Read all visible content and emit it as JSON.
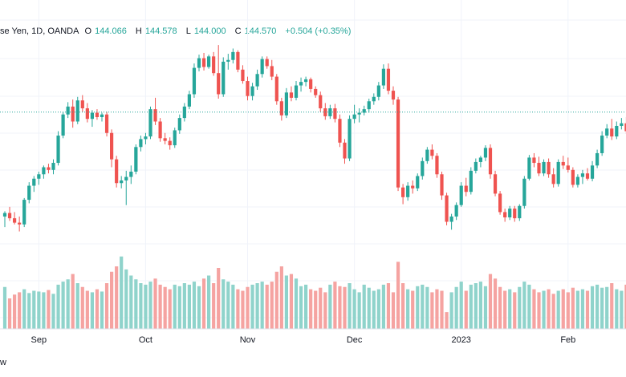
{
  "legend": {
    "symbol": "se Yen, 1D, OANDA",
    "open_label": "O",
    "open": "144.066",
    "high_label": "H",
    "high": "144.578",
    "low_label": "L",
    "low": "144.000",
    "close_label": "C",
    "close": "144.570",
    "change": "+0.504 (+0.35%)"
  },
  "footer_text": "w",
  "colors": {
    "up": "#26a69a",
    "down": "#ef5350",
    "vol_up": "#8fd3cb",
    "vol_down": "#f5a3a1",
    "grid": "#f0f3fa",
    "price_line": "#26a69a"
  },
  "chart_data": {
    "type": "candlestick",
    "x_ticks": [
      {
        "label": "Sep",
        "index": 7
      },
      {
        "label": "Oct",
        "index": 29
      },
      {
        "label": "Nov",
        "index": 50
      },
      {
        "label": "Dec",
        "index": 72
      },
      {
        "label": "2023",
        "index": 94
      },
      {
        "label": "Feb",
        "index": 116
      }
    ],
    "current_price": 144.57,
    "y_range": [
      129.5,
      152.3
    ],
    "volume_range": [
      0,
      100
    ],
    "candles": [
      [
        132.7,
        133.3,
        131.5,
        133.1
      ],
      [
        133.1,
        133.8,
        132.2,
        132.5
      ],
      [
        132.5,
        133.2,
        131.8,
        132.0
      ],
      [
        132.0,
        132.7,
        131.0,
        131.8
      ],
      [
        131.8,
        134.8,
        131.5,
        134.6
      ],
      [
        134.6,
        136.6,
        134.2,
        136.2
      ],
      [
        136.2,
        137.3,
        135.5,
        137.0
      ],
      [
        137.0,
        137.8,
        136.3,
        137.5
      ],
      [
        137.5,
        138.5,
        137.0,
        138.3
      ],
      [
        138.3,
        138.7,
        137.6,
        138.0
      ],
      [
        138.0,
        139.2,
        137.5,
        138.8
      ],
      [
        138.8,
        142.4,
        138.5,
        141.9
      ],
      [
        141.9,
        144.6,
        141.6,
        144.3
      ],
      [
        144.3,
        145.7,
        143.9,
        145.2
      ],
      [
        145.2,
        146.0,
        142.8,
        143.5
      ],
      [
        143.5,
        146.3,
        143.2,
        145.9
      ],
      [
        145.9,
        146.5,
        144.6,
        145.0
      ],
      [
        145.0,
        145.6,
        143.4,
        143.8
      ],
      [
        143.8,
        144.8,
        142.9,
        144.5
      ],
      [
        144.5,
        144.9,
        143.7,
        144.0
      ],
      [
        144.0,
        144.5,
        143.5,
        144.3
      ],
      [
        144.3,
        144.6,
        141.8,
        142.2
      ],
      [
        142.2,
        142.6,
        138.3,
        139.2
      ],
      [
        139.2,
        139.6,
        136.0,
        136.5
      ],
      [
        136.5,
        137.3,
        135.9,
        136.8
      ],
      [
        136.8,
        137.9,
        134.0,
        137.2
      ],
      [
        137.2,
        138.5,
        136.4,
        137.8
      ],
      [
        137.8,
        140.9,
        137.5,
        140.6
      ],
      [
        140.6,
        141.9,
        140.1,
        141.5
      ],
      [
        141.5,
        142.2,
        140.9,
        141.8
      ],
      [
        141.8,
        145.2,
        141.5,
        144.9
      ],
      [
        144.9,
        146.2,
        143.1,
        143.5
      ],
      [
        143.5,
        143.9,
        141.2,
        141.6
      ],
      [
        141.6,
        142.2,
        140.9,
        141.3
      ],
      [
        141.3,
        141.7,
        140.3,
        140.8
      ],
      [
        140.8,
        142.8,
        140.5,
        142.5
      ],
      [
        142.5,
        144.3,
        142.1,
        143.9
      ],
      [
        143.9,
        145.6,
        143.5,
        145.2
      ],
      [
        145.2,
        147.0,
        144.9,
        146.6
      ],
      [
        146.6,
        150.1,
        146.2,
        149.6
      ],
      [
        149.6,
        151.1,
        149.2,
        150.7
      ],
      [
        150.7,
        151.3,
        149.3,
        149.7
      ],
      [
        149.7,
        151.1,
        149.5,
        150.9
      ],
      [
        150.9,
        151.4,
        148.7,
        149.0
      ],
      [
        149.0,
        152.2,
        146.1,
        146.6
      ],
      [
        146.6,
        150.8,
        146.3,
        150.3
      ],
      [
        150.3,
        151.2,
        149.4,
        150.5
      ],
      [
        150.5,
        151.8,
        150.1,
        151.4
      ],
      [
        151.4,
        151.6,
        149.1,
        149.4
      ],
      [
        149.4,
        149.9,
        147.8,
        148.1
      ],
      [
        148.1,
        148.6,
        145.9,
        146.4
      ],
      [
        146.4,
        147.9,
        145.9,
        147.5
      ],
      [
        147.5,
        149.4,
        147.1,
        148.9
      ],
      [
        148.9,
        150.9,
        148.5,
        150.6
      ],
      [
        150.6,
        150.9,
        149.5,
        149.8
      ],
      [
        149.8,
        150.5,
        148.2,
        148.6
      ],
      [
        148.6,
        148.9,
        145.4,
        145.8
      ],
      [
        145.8,
        146.2,
        143.6,
        144.2
      ],
      [
        144.2,
        147.3,
        143.9,
        146.8
      ],
      [
        146.8,
        147.5,
        145.8,
        146.2
      ],
      [
        146.2,
        148.1,
        145.9,
        147.6
      ],
      [
        147.6,
        148.5,
        146.9,
        148.0
      ],
      [
        148.0,
        148.6,
        147.5,
        148.3
      ],
      [
        148.3,
        148.5,
        146.8,
        147.2
      ],
      [
        147.2,
        147.5,
        146.2,
        146.5
      ],
      [
        146.5,
        146.9,
        144.6,
        145.0
      ],
      [
        145.0,
        145.6,
        143.7,
        144.1
      ],
      [
        144.1,
        145.4,
        143.8,
        145.0
      ],
      [
        145.0,
        145.5,
        143.4,
        143.8
      ],
      [
        143.8,
        144.3,
        140.6,
        141.1
      ],
      [
        141.1,
        141.5,
        138.7,
        139.3
      ],
      [
        139.3,
        144.2,
        139.0,
        143.8
      ],
      [
        143.8,
        145.4,
        143.3,
        144.3
      ],
      [
        144.3,
        145.0,
        143.4,
        144.5
      ],
      [
        144.5,
        145.3,
        144.2,
        144.9
      ],
      [
        144.9,
        146.1,
        144.5,
        145.8
      ],
      [
        145.8,
        146.7,
        145.4,
        146.3
      ],
      [
        146.3,
        148.0,
        145.9,
        147.6
      ],
      [
        147.6,
        150.0,
        147.2,
        149.5
      ],
      [
        149.5,
        150.1,
        146.6,
        147.0
      ],
      [
        147.0,
        147.5,
        145.4,
        146.0
      ],
      [
        146.0,
        146.3,
        135.6,
        136.0
      ],
      [
        136.0,
        136.4,
        134.1,
        134.9
      ],
      [
        134.9,
        136.6,
        134.5,
        136.2
      ],
      [
        136.2,
        136.8,
        135.3,
        135.9
      ],
      [
        135.9,
        137.6,
        135.6,
        137.3
      ],
      [
        137.3,
        139.4,
        136.9,
        139.0
      ],
      [
        139.0,
        140.6,
        138.7,
        140.3
      ],
      [
        140.3,
        140.9,
        139.2,
        139.6
      ],
      [
        139.6,
        139.9,
        137.1,
        137.5
      ],
      [
        137.5,
        137.8,
        134.6,
        135.1
      ],
      [
        135.1,
        135.4,
        131.7,
        132.1
      ],
      [
        132.1,
        133.0,
        131.2,
        132.7
      ],
      [
        132.7,
        134.3,
        132.3,
        134.0
      ],
      [
        134.0,
        136.6,
        133.8,
        136.2
      ],
      [
        136.2,
        137.1,
        135.0,
        135.5
      ],
      [
        135.5,
        138.3,
        135.2,
        137.9
      ],
      [
        137.9,
        139.3,
        137.6,
        138.9
      ],
      [
        138.9,
        139.6,
        138.3,
        139.4
      ],
      [
        139.4,
        140.8,
        139.0,
        140.5
      ],
      [
        140.5,
        140.9,
        137.0,
        137.5
      ],
      [
        137.5,
        137.9,
        135.0,
        135.3
      ],
      [
        135.3,
        135.6,
        132.9,
        133.2
      ],
      [
        133.2,
        133.6,
        132.1,
        132.6
      ],
      [
        132.6,
        133.9,
        132.3,
        133.6
      ],
      [
        133.6,
        133.9,
        132.1,
        132.5
      ],
      [
        132.5,
        134.1,
        132.2,
        133.9
      ],
      [
        133.9,
        137.3,
        133.6,
        137.0
      ],
      [
        137.0,
        139.7,
        136.8,
        139.4
      ],
      [
        139.4,
        139.9,
        138.3,
        138.8
      ],
      [
        138.8,
        139.5,
        137.3,
        137.6
      ],
      [
        137.6,
        139.2,
        137.3,
        138.9
      ],
      [
        138.9,
        139.3,
        137.1,
        137.5
      ],
      [
        137.5,
        138.2,
        136.0,
        136.4
      ],
      [
        136.4,
        139.2,
        136.1,
        138.9
      ],
      [
        138.9,
        139.6,
        138.1,
        138.5
      ],
      [
        138.5,
        139.4,
        137.7,
        138.0
      ],
      [
        138.0,
        138.3,
        136.0,
        136.3
      ],
      [
        136.3,
        137.5,
        136.0,
        137.2
      ],
      [
        137.2,
        138.0,
        136.4,
        137.6
      ],
      [
        137.6,
        138.2,
        136.8,
        137.0
      ],
      [
        137.0,
        139.0,
        136.7,
        138.5
      ],
      [
        138.5,
        140.3,
        138.2,
        139.9
      ],
      [
        139.9,
        142.4,
        139.6,
        141.9
      ],
      [
        141.9,
        143.2,
        141.6,
        142.7
      ],
      [
        142.7,
        143.8,
        141.4,
        141.8
      ],
      [
        141.8,
        143.5,
        141.5,
        143.0
      ],
      [
        143.0,
        143.9,
        142.6,
        143.3
      ],
      [
        143.3,
        144.0,
        142.1,
        142.4
      ],
      [
        142.4,
        142.8,
        140.9,
        141.3
      ],
      [
        141.3,
        142.7,
        141.0,
        142.3
      ],
      [
        142.3,
        144.6,
        142.0,
        144.3
      ],
      [
        144.1,
        144.6,
        144.0,
        144.6
      ]
    ],
    "volume": [
      55,
      40,
      45,
      48,
      52,
      47,
      50,
      49,
      48,
      51,
      46,
      58,
      62,
      65,
      72,
      60,
      55,
      50,
      48,
      52,
      49,
      60,
      75,
      82,
      95,
      78,
      70,
      65,
      60,
      58,
      62,
      66,
      58,
      55,
      52,
      58,
      56,
      60,
      58,
      62,
      56,
      66,
      70,
      60,
      80,
      65,
      62,
      58,
      52,
      50,
      55,
      58,
      60,
      62,
      58,
      62,
      75,
      82,
      70,
      72,
      66,
      56,
      58,
      52,
      50,
      54,
      48,
      58,
      62,
      56,
      55,
      60,
      52,
      48,
      58,
      54,
      50,
      52,
      58,
      60,
      48,
      88,
      60,
      52,
      50,
      56,
      58,
      55,
      48,
      52,
      50,
      22,
      48,
      55,
      62,
      50,
      58,
      60,
      62,
      56,
      72,
      66,
      55,
      50,
      52,
      48,
      55,
      62,
      58,
      52,
      48,
      50,
      52,
      46,
      50,
      52,
      48,
      54,
      50,
      52,
      50,
      56,
      58,
      54,
      55,
      60,
      52,
      50,
      58,
      52,
      48,
      55,
      53
    ]
  }
}
